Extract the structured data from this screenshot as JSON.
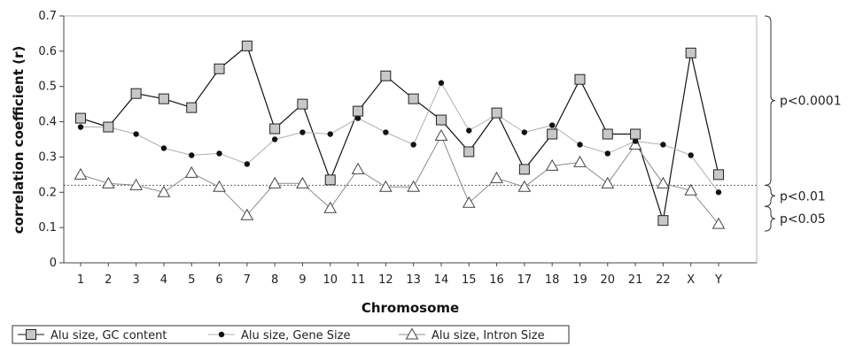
{
  "chart_data": {
    "type": "line",
    "xlabel": "Chromosome",
    "ylabel": "correlation coefficient (r)",
    "ylim": [
      0,
      0.7
    ],
    "yticks": [
      "0",
      "0.1",
      "0.2",
      "0.3",
      "0.4",
      "0.5",
      "0.6",
      "0.7"
    ],
    "grid": false,
    "categories": [
      "1",
      "2",
      "3",
      "4",
      "5",
      "6",
      "7",
      "8",
      "9",
      "10",
      "11",
      "12",
      "13",
      "14",
      "15",
      "16",
      "17",
      "18",
      "19",
      "20",
      "21",
      "22",
      "X",
      "Y"
    ],
    "series": [
      {
        "name": "Alu size, GC content",
        "marker": "square",
        "color": "#111111",
        "values": [
          0.41,
          0.385,
          0.48,
          0.465,
          0.44,
          0.55,
          0.615,
          0.38,
          0.45,
          0.235,
          0.43,
          0.53,
          0.465,
          0.405,
          0.315,
          0.425,
          0.265,
          0.365,
          0.52,
          0.365,
          0.365,
          0.12,
          0.595,
          0.25
        ]
      },
      {
        "name": "Alu size, Gene Size",
        "marker": "circle",
        "color": "#aaaaaa",
        "values": [
          0.385,
          0.385,
          0.365,
          0.325,
          0.305,
          0.31,
          0.28,
          0.35,
          0.37,
          0.365,
          0.41,
          0.37,
          0.335,
          0.51,
          0.375,
          0.42,
          0.37,
          0.39,
          0.335,
          0.31,
          0.345,
          0.335,
          0.305,
          0.2
        ]
      },
      {
        "name": "Alu size, Intron Size",
        "marker": "triangle",
        "color": "#888888",
        "values": [
          0.25,
          0.225,
          0.22,
          0.2,
          0.255,
          0.215,
          0.135,
          0.225,
          0.225,
          0.155,
          0.265,
          0.215,
          0.215,
          0.36,
          0.17,
          0.24,
          0.215,
          0.275,
          0.285,
          0.225,
          0.335,
          0.225,
          0.205,
          0.11
        ]
      }
    ],
    "reference_line": {
      "value": 0.22,
      "style": "dotted"
    },
    "significance_brackets": [
      {
        "label": "p<0.0001",
        "from": 0.22,
        "to": 0.7
      },
      {
        "label": "p<0.01",
        "from": 0.16,
        "to": 0.22
      },
      {
        "label": "p<0.05",
        "from": 0.09,
        "to": 0.16
      }
    ],
    "legend": {
      "position": "bottom"
    }
  }
}
